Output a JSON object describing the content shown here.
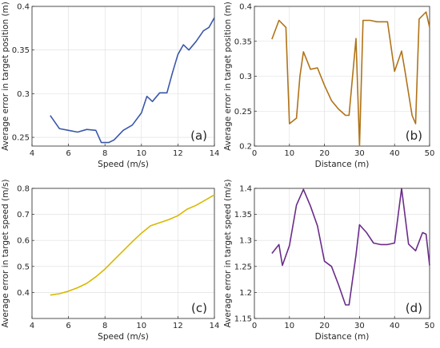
{
  "chart_data": [
    {
      "type": "line",
      "panel_label": "(a)",
      "xlabel": "Speed (m/s)",
      "ylabel": "Average error in target position (m)",
      "xlim": [
        4,
        14
      ],
      "ylim": [
        0.24,
        0.4
      ],
      "xticks": [
        4,
        6,
        8,
        10,
        12,
        14
      ],
      "yticks": [
        0.25,
        0.3,
        0.35,
        0.4
      ],
      "grid": true,
      "color": "#3a58a8",
      "x": [
        5,
        5.5,
        6,
        6.5,
        7,
        7.5,
        7.8,
        8.2,
        8.5,
        9,
        9.5,
        10,
        10.3,
        10.6,
        11,
        11.4,
        11.7,
        12,
        12.3,
        12.6,
        13,
        13.4,
        13.7,
        14
      ],
      "y": [
        0.275,
        0.26,
        0.258,
        0.256,
        0.259,
        0.258,
        0.244,
        0.244,
        0.247,
        0.258,
        0.264,
        0.278,
        0.297,
        0.291,
        0.301,
        0.301,
        0.324,
        0.345,
        0.356,
        0.35,
        0.36,
        0.372,
        0.376,
        0.387
      ]
    },
    {
      "type": "line",
      "panel_label": "(b)",
      "xlabel": "Distance (m)",
      "ylabel": "Average error in target position (m)",
      "xlim": [
        0,
        50
      ],
      "ylim": [
        0.2,
        0.4
      ],
      "xticks": [
        0,
        10,
        20,
        30,
        40,
        50
      ],
      "yticks": [
        0.2,
        0.25,
        0.3,
        0.35,
        0.4
      ],
      "grid": true,
      "color": "#b07318",
      "x": [
        5,
        7,
        9,
        10,
        12,
        13,
        14,
        16,
        18,
        20,
        22,
        24,
        26,
        27,
        29,
        30,
        31,
        33,
        35,
        38,
        40,
        42,
        43,
        45,
        46,
        47,
        49,
        50
      ],
      "y": [
        0.353,
        0.38,
        0.37,
        0.232,
        0.24,
        0.3,
        0.335,
        0.31,
        0.312,
        0.287,
        0.265,
        0.253,
        0.244,
        0.244,
        0.354,
        0.2,
        0.38,
        0.38,
        0.378,
        0.378,
        0.307,
        0.336,
        0.307,
        0.244,
        0.232,
        0.382,
        0.392,
        0.37
      ]
    },
    {
      "type": "line",
      "panel_label": "(c)",
      "xlabel": "Speed (m/s)",
      "ylabel": "Average error in target speed (m/s)",
      "xlim": [
        4,
        14
      ],
      "ylim": [
        0.3,
        0.8
      ],
      "xticks": [
        4,
        6,
        8,
        10,
        12,
        14
      ],
      "yticks": [
        0.4,
        0.5,
        0.6,
        0.7,
        0.8
      ],
      "grid": true,
      "color": "#d9b800",
      "x": [
        5,
        5.5,
        6,
        6.5,
        7,
        7.5,
        8,
        8.5,
        9,
        9.5,
        10,
        10.5,
        11,
        11.5,
        12,
        12.5,
        13,
        13.5,
        14
      ],
      "y": [
        0.39,
        0.395,
        0.405,
        0.418,
        0.435,
        0.46,
        0.49,
        0.525,
        0.56,
        0.595,
        0.628,
        0.656,
        0.668,
        0.68,
        0.695,
        0.72,
        0.735,
        0.755,
        0.775
      ]
    },
    {
      "type": "line",
      "panel_label": "(d)",
      "xlabel": "Distance (m)",
      "ylabel": "Average error in target speed (m/s)",
      "xlim": [
        0,
        50
      ],
      "ylim": [
        1.15,
        1.4
      ],
      "xticks": [
        0,
        10,
        20,
        30,
        40,
        50
      ],
      "yticks": [
        1.15,
        1.2,
        1.25,
        1.3,
        1.35,
        1.4
      ],
      "grid": true,
      "color": "#6a2c8a",
      "x": [
        5,
        7,
        8,
        10,
        12,
        14,
        16,
        18,
        20,
        22,
        24,
        26,
        27,
        29,
        30,
        32,
        34,
        36,
        38,
        40,
        42,
        44,
        46,
        48,
        49,
        50
      ],
      "y": [
        1.275,
        1.292,
        1.252,
        1.29,
        1.368,
        1.398,
        1.366,
        1.328,
        1.26,
        1.25,
        1.215,
        1.176,
        1.176,
        1.272,
        1.33,
        1.315,
        1.295,
        1.292,
        1.292,
        1.295,
        1.4,
        1.293,
        1.28,
        1.315,
        1.312,
        1.252
      ]
    }
  ]
}
